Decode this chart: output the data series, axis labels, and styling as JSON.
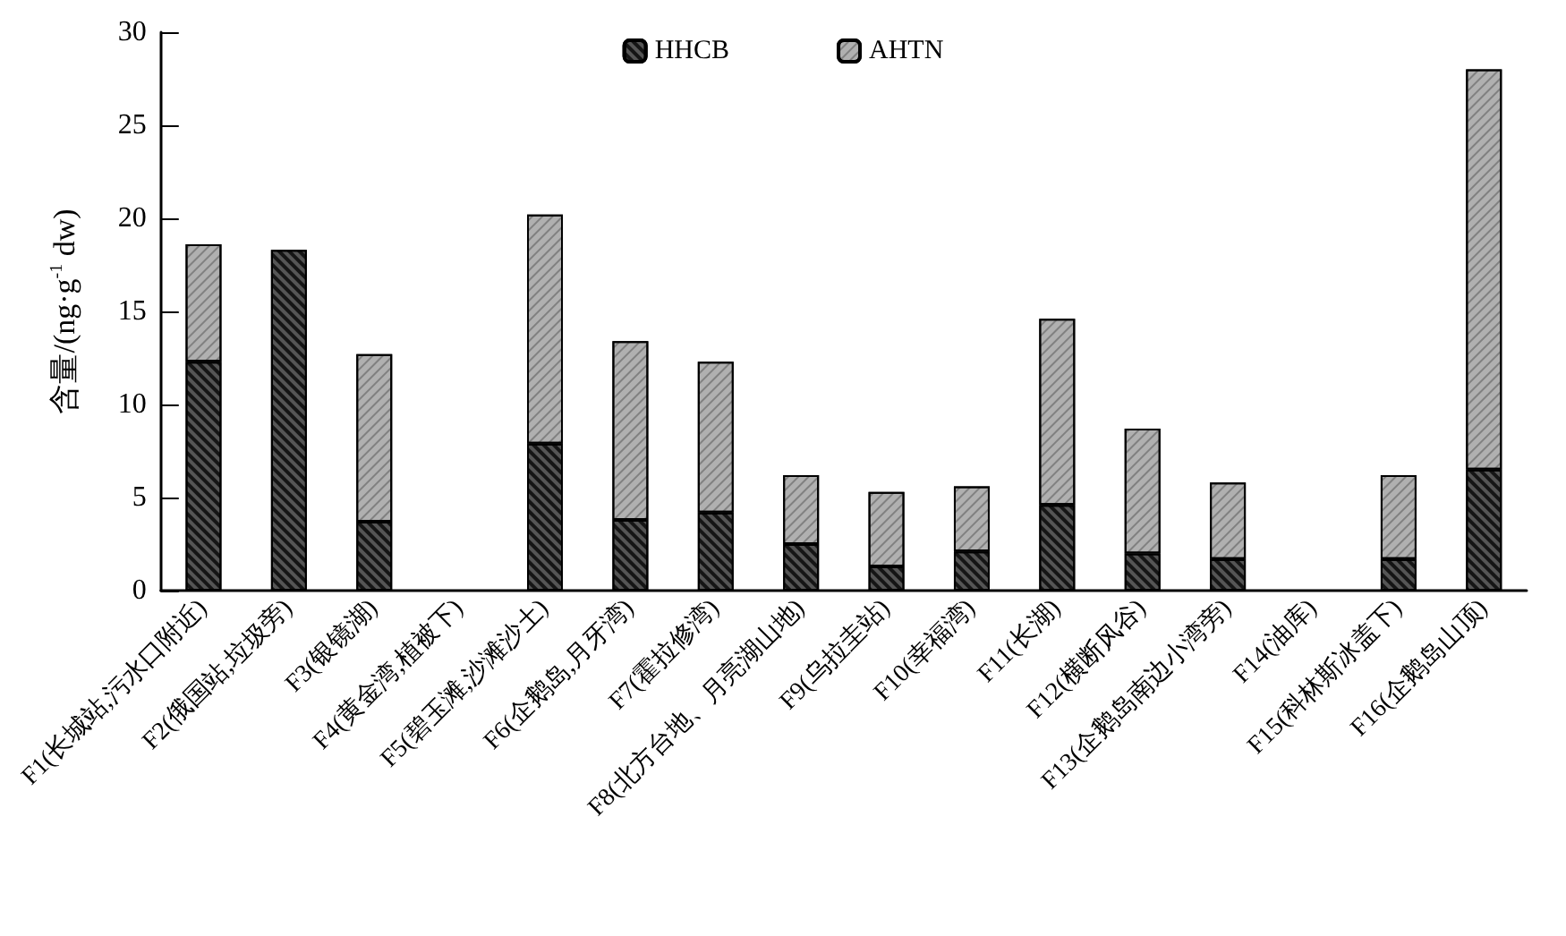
{
  "chart_data": {
    "type": "bar",
    "stacked": true,
    "ylabel": "含量/(ng·g$^{-1}$ dw)",
    "categories": [
      "F1(长城站,污水口附近)",
      "F2(俄国站,垃圾旁)",
      "F3(银镜湖)",
      "F4(黄金湾,植被下)",
      "F5(碧玉滩,沙滩沙土)",
      "F6(企鹅岛,月牙湾)",
      "F7(霍拉修湾)",
      "F8(北方台地、月亮湖山地)",
      "F9(乌拉圭站)",
      "F10(幸福湾)",
      "F11(长湖)",
      "F12(横断风谷)",
      "F13(企鹅岛南边小湾旁)",
      "F14(油库)",
      "F15(科林斯冰盖下)",
      "F16(企鹅岛山顶)"
    ],
    "series": [
      {
        "name": "HHCB",
        "color": "#555555",
        "values": [
          12.3,
          18.3,
          3.7,
          0,
          7.9,
          3.8,
          4.2,
          2.5,
          1.3,
          2.1,
          4.6,
          2.0,
          1.7,
          0,
          1.7,
          6.5
        ]
      },
      {
        "name": "AHTN",
        "color": "#b0b0b0",
        "values": [
          6.3,
          0,
          9.0,
          0,
          12.3,
          9.6,
          8.1,
          3.7,
          4.0,
          3.5,
          10.0,
          6.7,
          4.1,
          0,
          4.5,
          21.5
        ]
      }
    ],
    "ylim": [
      0,
      30
    ],
    "yticks": [
      0,
      5,
      10,
      15,
      20,
      25,
      30
    ],
    "grid": false,
    "legend": "top"
  }
}
